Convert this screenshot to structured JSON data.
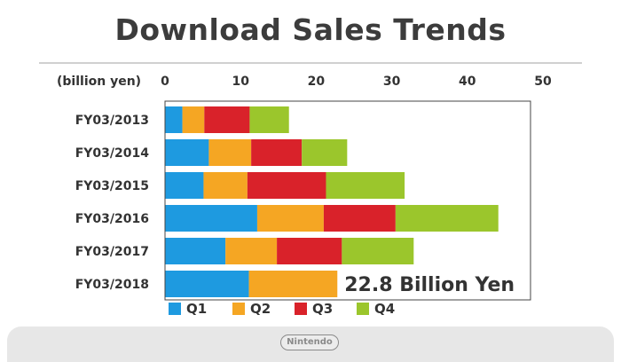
{
  "title": "Download Sales Trends",
  "logo_text": "Nintendo",
  "chart_data": {
    "type": "bar",
    "orientation": "horizontal",
    "stacked": true,
    "unit_label": "(billion yen)",
    "xlim": [
      0,
      50
    ],
    "xticks": [
      "0",
      "10",
      "20",
      "30",
      "40",
      "50"
    ],
    "categories": [
      "FY03/2013",
      "FY03/2014",
      "FY03/2015",
      "FY03/2016",
      "FY03/2017",
      "FY03/2018"
    ],
    "series": [
      {
        "name": "Q1",
        "color": "#1e9ae0",
        "values": [
          2.3,
          5.8,
          5.1,
          12.2,
          8.0,
          11.1
        ]
      },
      {
        "name": "Q2",
        "color": "#f5a623",
        "values": [
          2.9,
          5.6,
          5.8,
          8.8,
          6.8,
          11.7
        ]
      },
      {
        "name": "Q3",
        "color": "#d9222a",
        "values": [
          6.0,
          6.7,
          10.4,
          9.5,
          8.6,
          0
        ]
      },
      {
        "name": "Q4",
        "color": "#9bc62c",
        "values": [
          5.2,
          6.0,
          10.4,
          13.6,
          9.5,
          0
        ]
      }
    ],
    "annotation": "22.8 Billion Yen",
    "legend_position": "bottom",
    "grid": false
  }
}
